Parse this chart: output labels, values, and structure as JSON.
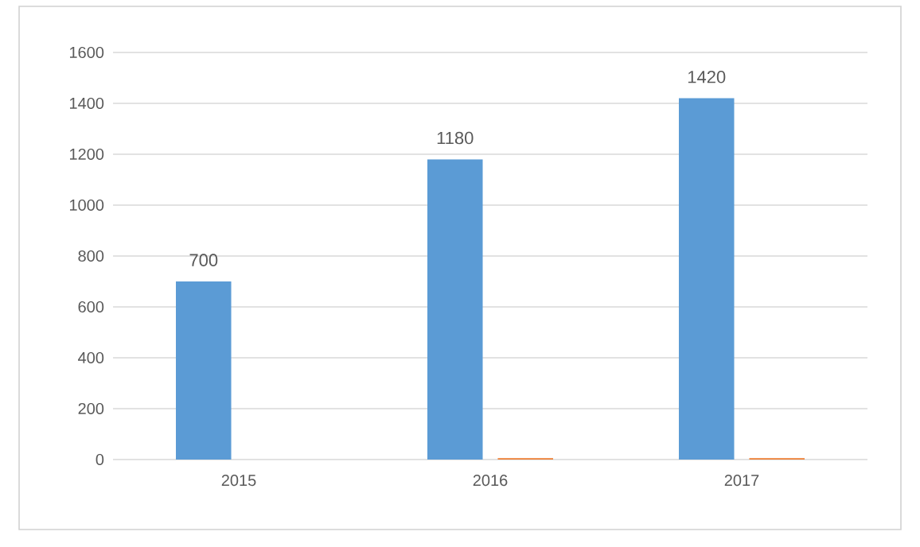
{
  "chart_data": {
    "type": "bar",
    "categories": [
      "2015",
      "2016",
      "2017"
    ],
    "series": [
      {
        "color": "#5b9bd5",
        "values": [
          700,
          1180,
          1420
        ],
        "value_labels": [
          "700",
          "1180",
          "1420"
        ]
      },
      {
        "color": "#ed7d31",
        "values": [
          null,
          5,
          5
        ]
      }
    ],
    "ylim": [
      0,
      1600
    ],
    "yticks": [
      0,
      200,
      400,
      600,
      800,
      1000,
      1200,
      1400,
      1600
    ],
    "grid": "y"
  }
}
